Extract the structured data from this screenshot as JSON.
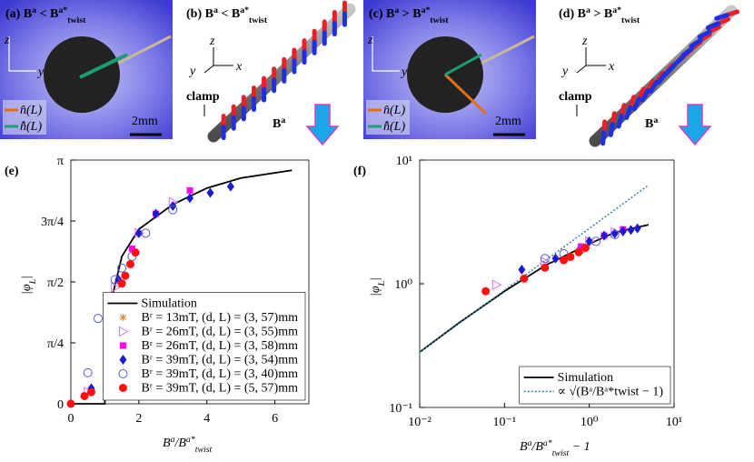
{
  "panels": [
    {
      "label": [
        {
          "text": "(a) B"
        },
        {
          "text": "a",
          "pos": "sup"
        },
        {
          "text": " < B"
        },
        {
          "text": "a*",
          "pos": "sup"
        },
        {
          "text": "twist",
          "pos": "sub"
        }
      ],
      "axes": [
        "z",
        "y"
      ],
      "legend": [
        "n̂(L)",
        "n̂̊(L)"
      ],
      "scale": "2mm"
    },
    {
      "label": [
        {
          "text": "(b) B"
        },
        {
          "text": "a",
          "pos": "sup"
        },
        {
          "text": " < B"
        },
        {
          "text": "a*",
          "pos": "sup"
        },
        {
          "text": "twist",
          "pos": "sub"
        }
      ],
      "axes": [
        "z",
        "y",
        "x"
      ],
      "clamp": "clamp",
      "field": [
        {
          "text": "B"
        },
        {
          "text": "a",
          "pos": "sup"
        }
      ]
    },
    {
      "label": [
        {
          "text": "(c) B"
        },
        {
          "text": "a",
          "pos": "sup"
        },
        {
          "text": " > B"
        },
        {
          "text": "a*",
          "pos": "sup"
        },
        {
          "text": "twist",
          "pos": "sub"
        }
      ],
      "axes": [
        "z",
        "y"
      ],
      "legend": [
        "n̂(L)",
        "n̂̊(L)"
      ],
      "scale": "2mm"
    },
    {
      "label": [
        {
          "text": "(d) B"
        },
        {
          "text": "a",
          "pos": "sup"
        },
        {
          "text": " > B"
        },
        {
          "text": "a*",
          "pos": "sup"
        },
        {
          "text": "twist",
          "pos": "sub"
        }
      ],
      "axes": [
        "z",
        "y",
        "x"
      ],
      "clamp": "clamp",
      "field": [
        {
          "text": "B"
        },
        {
          "text": "a",
          "pos": "sup"
        }
      ]
    }
  ],
  "chart_data": [
    {
      "type": "scatter",
      "panel_label": "(e)",
      "xlabel": [
        {
          "text": "B"
        },
        {
          "text": "a",
          "pos": "sup"
        },
        {
          "text": "/B"
        },
        {
          "text": "a*",
          "pos": "sup"
        },
        {
          "text": "twist",
          "pos": "sub"
        }
      ],
      "ylabel": [
        {
          "text": "|φ"
        },
        {
          "text": "L",
          "pos": "sub"
        },
        {
          "text": "|"
        }
      ],
      "xlim": [
        0,
        7
      ],
      "xticks": [
        0,
        2,
        4,
        6
      ],
      "ylim": [
        0,
        3.1416
      ],
      "yticks": [
        0,
        {
          "value": 0.7854,
          "label": "π/4"
        },
        {
          "value": 1.5708,
          "label": "π/2"
        },
        {
          "value": 2.3562,
          "label": "3π/4"
        },
        {
          "value": 3.1416,
          "label": "π"
        }
      ],
      "legend": "lower right",
      "series": [
        {
          "name": "Simulation",
          "color": "#000000",
          "marker": "line",
          "x": [
            0,
            0.5,
            1,
            1.02,
            1.05,
            1.1,
            1.2,
            1.5,
            2,
            3,
            4,
            5,
            6.5
          ],
          "values": [
            0,
            0,
            0,
            0.5,
            0.8,
            1.1,
            1.35,
            1.9,
            2.25,
            2.57,
            2.78,
            2.91,
            3.01
          ]
        },
        {
          "name": "Bʳ = 13mT, (d, L) = (3, 57)mm",
          "color": "#e0883c",
          "marker": "asterisk",
          "x": [
            1.4,
            2.0
          ],
          "values": [
            1.6,
            2.2
          ]
        },
        {
          "name": "Bʳ = 26mT, (d, L) = (3, 55)mm",
          "color": "#e070e8",
          "marker": "triangle-open",
          "x": [
            0.5,
            1.08,
            1.3,
            2.0,
            3.0
          ],
          "values": [
            0.15,
            0.98,
            1.5,
            2.2,
            2.6
          ]
        },
        {
          "name": "Bʳ = 26mT, (d, L) = (3, 58)mm",
          "color": "#ff00ff",
          "marker": "square",
          "x": [
            1.8,
            2.5,
            3.5
          ],
          "values": [
            2.0,
            2.45,
            2.75
          ]
        },
        {
          "name": "Bʳ = 39mT, (d, L) = (3, 54)mm",
          "color": "#1a1ad0",
          "marker": "diamond",
          "x": [
            0.6,
            1.16,
            1.4,
            2.0,
            2.5,
            3.0,
            3.5,
            4.1,
            4.7
          ],
          "values": [
            0.2,
            1.3,
            1.6,
            2.2,
            2.45,
            2.55,
            2.65,
            2.72,
            2.8
          ]
        },
        {
          "name": "Bʳ = 39mT, (d, L) = (3, 40)mm",
          "color": "#5a5ad8",
          "marker": "circle-open",
          "x": [
            0.5,
            0.8,
            1.3,
            1.5,
            1.8,
            2.2,
            3.0
          ],
          "values": [
            0.4,
            1.1,
            1.6,
            1.75,
            1.9,
            2.2,
            2.5
          ]
        },
        {
          "name": "Bʳ = 39mT, (d, L) = (5, 57)mm",
          "color": "#ff1010",
          "marker": "circle",
          "x": [
            0,
            0.4,
            0.6,
            1.06,
            1.17,
            1.3,
            1.5,
            1.6,
            1.75,
            1.9
          ],
          "values": [
            0,
            0.1,
            0.15,
            0.87,
            1.1,
            1.35,
            1.55,
            1.65,
            1.8,
            1.95
          ]
        }
      ]
    },
    {
      "type": "scatter",
      "panel_label": "(f)",
      "xlabel": [
        {
          "text": "B"
        },
        {
          "text": "a",
          "pos": "sup"
        },
        {
          "text": "/B"
        },
        {
          "text": "a*",
          "pos": "sup"
        },
        {
          "text": "twist",
          "pos": "sub"
        },
        {
          "text": " − 1"
        }
      ],
      "ylabel": [
        {
          "text": "|φ"
        },
        {
          "text": "L",
          "pos": "sub"
        },
        {
          "text": "|"
        }
      ],
      "xscale": "log",
      "yscale": "log",
      "xlim": [
        0.01,
        10
      ],
      "xticks": [
        {
          "value": 0.01,
          "label": "10⁻²"
        },
        {
          "value": 0.1,
          "label": "10⁻¹"
        },
        {
          "value": 1,
          "label": "10⁰"
        },
        {
          "value": 10,
          "label": "10¹"
        }
      ],
      "ylim": [
        0.1,
        10
      ],
      "yticks": [
        {
          "value": 0.1,
          "label": "10⁻¹"
        },
        {
          "value": 1,
          "label": "10⁰"
        },
        {
          "value": 10,
          "label": "10¹"
        }
      ],
      "legend": "lower right",
      "series": [
        {
          "name": "Simulation",
          "color": "#000000",
          "marker": "line",
          "x": [
            0.01,
            0.03,
            0.1,
            0.3,
            1,
            2,
            5
          ],
          "values": [
            0.28,
            0.49,
            0.87,
            1.4,
            2.1,
            2.6,
            3.0
          ]
        },
        {
          "name": "∝ √(Bᵃ/Bᵃ*twist − 1)",
          "color": "#2a7fa0",
          "marker": "dotted",
          "x": [
            0.01,
            5
          ],
          "values": [
            0.28,
            6.26
          ]
        },
        {
          "color": "#e0883c",
          "marker": "asterisk",
          "x": [
            0.4,
            1.0
          ],
          "values": [
            1.6,
            2.2
          ]
        },
        {
          "color": "#e070e8",
          "marker": "triangle-open",
          "x": [
            0.08,
            0.3,
            1.0,
            2.0
          ],
          "values": [
            0.98,
            1.5,
            2.2,
            2.6
          ]
        },
        {
          "color": "#ff00ff",
          "marker": "square",
          "x": [
            0.8,
            1.5,
            2.5
          ],
          "values": [
            2.0,
            2.45,
            2.75
          ]
        },
        {
          "color": "#1a1ad0",
          "marker": "diamond",
          "x": [
            0.16,
            0.4,
            1,
            1.5,
            2,
            2.5,
            3.1,
            3.7
          ],
          "values": [
            1.3,
            1.6,
            2.2,
            2.45,
            2.55,
            2.65,
            2.72,
            2.8
          ]
        },
        {
          "color": "#5a5ad8",
          "marker": "circle-open",
          "x": [
            0.3,
            0.5,
            0.8,
            1.2,
            2.0
          ],
          "values": [
            1.6,
            1.75,
            1.9,
            2.2,
            2.5
          ]
        },
        {
          "color": "#ff1010",
          "marker": "circle",
          "x": [
            0.06,
            0.17,
            0.3,
            0.5,
            0.6,
            0.75,
            0.9
          ],
          "values": [
            0.87,
            1.1,
            1.35,
            1.55,
            1.65,
            1.8,
            1.95
          ]
        }
      ]
    }
  ]
}
